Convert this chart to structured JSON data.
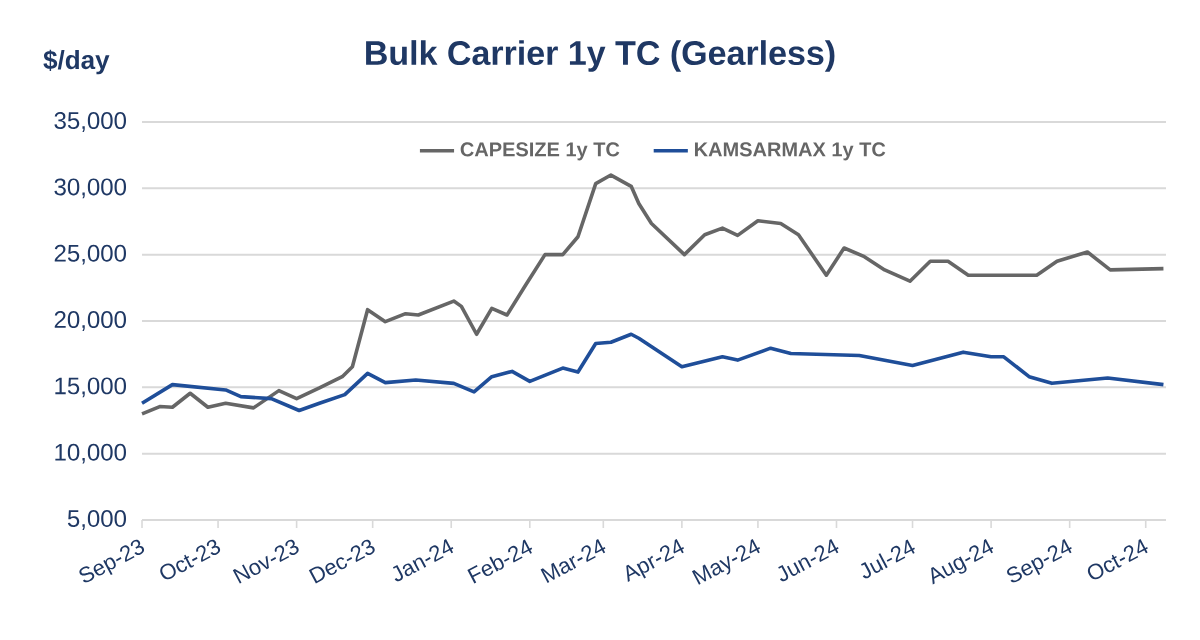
{
  "chart_data": {
    "type": "line",
    "title": "Bulk Carrier 1y TC (Gearless)",
    "ylabel": "$/day",
    "xlim": [
      "2023-09-01",
      "2024-10-09"
    ],
    "xticks": [
      {
        "value": "2023-09-01",
        "label": "Sep-23"
      },
      {
        "value": "2023-10-01",
        "label": "Oct-23"
      },
      {
        "value": "2023-11-01",
        "label": "Nov-23"
      },
      {
        "value": "2023-12-01",
        "label": "Dec-23"
      },
      {
        "value": "2024-01-01",
        "label": "Jan-24"
      },
      {
        "value": "2024-02-01",
        "label": "Feb-24"
      },
      {
        "value": "2024-03-01",
        "label": "Mar-24"
      },
      {
        "value": "2024-04-01",
        "label": "Apr-24"
      },
      {
        "value": "2024-05-01",
        "label": "May-24"
      },
      {
        "value": "2024-06-01",
        "label": "Jun-24"
      },
      {
        "value": "2024-07-01",
        "label": "Jul-24"
      },
      {
        "value": "2024-08-01",
        "label": "Aug-24"
      },
      {
        "value": "2024-09-01",
        "label": "Sep-24"
      },
      {
        "value": "2024-10-01",
        "label": "Oct-24"
      }
    ],
    "ylim": [
      5000,
      35000
    ],
    "yticks": [
      {
        "value": 5000,
        "label": "5,000"
      },
      {
        "value": 10000,
        "label": "10,000"
      },
      {
        "value": 15000,
        "label": "15,000"
      },
      {
        "value": 20000,
        "label": "20,000"
      },
      {
        "value": 25000,
        "label": "25,000"
      },
      {
        "value": 30000,
        "label": "30,000"
      },
      {
        "value": 35000,
        "label": "35,000"
      }
    ],
    "grid": "y",
    "legend": "top",
    "marker": "none",
    "line_style": "solid",
    "series": [
      {
        "name": "CAPESIZE 1y TC",
        "color": "#666666",
        "x": [
          "2023-09-01",
          "2023-09-08",
          "2023-09-13",
          "2023-09-20",
          "2023-09-27",
          "2023-10-04",
          "2023-10-15",
          "2023-10-25",
          "2023-11-01",
          "2023-11-10",
          "2023-11-19",
          "2023-11-23",
          "2023-11-29",
          "2023-12-06",
          "2023-12-14",
          "2023-12-19",
          "2024-01-02",
          "2024-01-05",
          "2024-01-11",
          "2024-01-17",
          "2024-01-23",
          "2024-01-30",
          "2024-02-07",
          "2024-02-14",
          "2024-02-20",
          "2024-02-27",
          "2024-03-04",
          "2024-03-12",
          "2024-03-15",
          "2024-03-20",
          "2024-04-02",
          "2024-04-10",
          "2024-04-17",
          "2024-04-23",
          "2024-05-01",
          "2024-05-10",
          "2024-05-17",
          "2024-05-28",
          "2024-06-04",
          "2024-06-12",
          "2024-06-20",
          "2024-06-30",
          "2024-07-08",
          "2024-07-15",
          "2024-07-23",
          "2024-08-19",
          "2024-08-27",
          "2024-09-08",
          "2024-09-17",
          "2024-10-08"
        ],
        "values": [
          13000,
          13550,
          13500,
          14550,
          13500,
          13800,
          13450,
          14750,
          14150,
          14950,
          15800,
          16550,
          20850,
          19950,
          20550,
          20450,
          21500,
          21100,
          19000,
          20950,
          20450,
          22600,
          25000,
          25000,
          26350,
          30350,
          31000,
          30150,
          28850,
          27350,
          25000,
          26500,
          27000,
          26450,
          27550,
          27350,
          26500,
          23450,
          25500,
          24850,
          23850,
          23000,
          24500,
          24500,
          23450,
          23450,
          24500,
          25200,
          23850,
          23950
        ]
      },
      {
        "name": "KAMSARMAX 1y TC",
        "color": "#1f4e99",
        "x": [
          "2023-09-01",
          "2023-09-13",
          "2023-10-04",
          "2023-10-10",
          "2023-10-22",
          "2023-11-02",
          "2023-11-10",
          "2023-11-20",
          "2023-11-29",
          "2023-12-06",
          "2023-12-18",
          "2024-01-02",
          "2024-01-10",
          "2024-01-17",
          "2024-01-25",
          "2024-02-01",
          "2024-02-14",
          "2024-02-20",
          "2024-02-27",
          "2024-03-04",
          "2024-03-12",
          "2024-03-15",
          "2024-04-01",
          "2024-04-17",
          "2024-04-23",
          "2024-05-06",
          "2024-05-14",
          "2024-06-10",
          "2024-07-01",
          "2024-07-21",
          "2024-08-01",
          "2024-08-06",
          "2024-08-16",
          "2024-08-25",
          "2024-09-16",
          "2024-10-08"
        ],
        "values": [
          13800,
          15200,
          14800,
          14300,
          14150,
          13250,
          13800,
          14450,
          16050,
          15350,
          15550,
          15300,
          14650,
          15800,
          16200,
          15450,
          16450,
          16150,
          18300,
          18400,
          19000,
          18700,
          16550,
          17300,
          17050,
          17950,
          17550,
          17400,
          16650,
          17650,
          17300,
          17300,
          15800,
          15300,
          15700,
          15200
        ]
      }
    ]
  }
}
